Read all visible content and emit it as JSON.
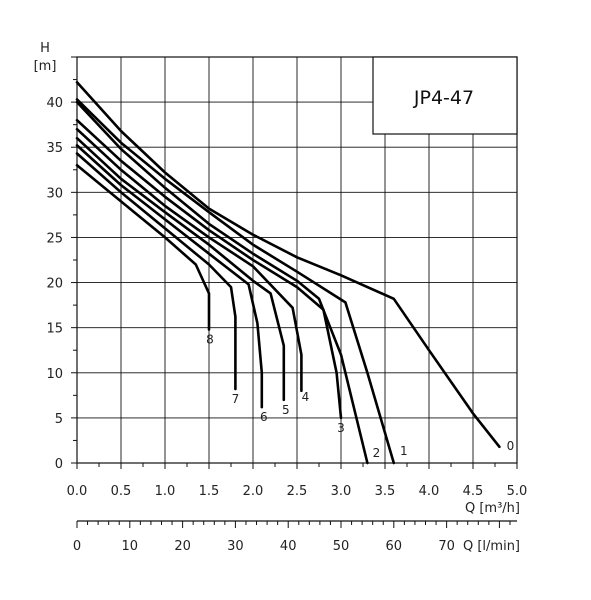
{
  "chart_data": {
    "type": "line",
    "title": "JP4-47",
    "y_axis": {
      "name": "H",
      "unit": "[m]",
      "range": [
        0,
        45
      ],
      "ticks": [
        0,
        5,
        10,
        15,
        20,
        25,
        30,
        35,
        40
      ]
    },
    "x_axis": {
      "label": "Q [m³/h]",
      "range": [
        0,
        5
      ],
      "ticks": [
        "0.0",
        "0.5",
        "1.0",
        "1.5",
        "2.0",
        "2.5",
        "3.0",
        "3.5",
        "4.0",
        "4.5",
        "5.0"
      ]
    },
    "x_axis_secondary": {
      "label": "Q [l/min]",
      "range": [
        0,
        83.33
      ],
      "ticks": [
        "0",
        "10",
        "20",
        "30",
        "40",
        "50",
        "60",
        "70"
      ]
    },
    "grid": true,
    "series": [
      {
        "name": "0",
        "points": [
          [
            0,
            42.2
          ],
          [
            0.5,
            36.8
          ],
          [
            1,
            32.2
          ],
          [
            1.5,
            28.2
          ],
          [
            2,
            25.3
          ],
          [
            2.5,
            22.8
          ],
          [
            3,
            20.8
          ],
          [
            3.6,
            18.2
          ],
          [
            4,
            12.5
          ],
          [
            4.5,
            5.5
          ],
          [
            4.8,
            1.8
          ]
        ]
      },
      {
        "name": "1",
        "points": [
          [
            0,
            40.3
          ],
          [
            0.5,
            35.5
          ],
          [
            1,
            31.5
          ],
          [
            1.5,
            27.8
          ],
          [
            2,
            24.2
          ],
          [
            2.5,
            21.2
          ],
          [
            3.05,
            17.8
          ],
          [
            3.3,
            10
          ],
          [
            3.6,
            0
          ]
        ]
      },
      {
        "name": "2",
        "points": [
          [
            0,
            40.0
          ],
          [
            0.5,
            34.8
          ],
          [
            1,
            30.5
          ],
          [
            1.5,
            26.5
          ],
          [
            2,
            23.2
          ],
          [
            2.5,
            20.2
          ],
          [
            2.75,
            18.2
          ],
          [
            3.0,
            12
          ],
          [
            3.3,
            0
          ]
        ]
      },
      {
        "name": "3",
        "points": [
          [
            0,
            38.0
          ],
          [
            0.5,
            33.5
          ],
          [
            1,
            29.5
          ],
          [
            1.5,
            25.8
          ],
          [
            2,
            22.5
          ],
          [
            2.5,
            19.5
          ],
          [
            2.8,
            17.0
          ],
          [
            2.95,
            10
          ],
          [
            3.0,
            5
          ]
        ]
      },
      {
        "name": "4",
        "points": [
          [
            0,
            37.0
          ],
          [
            0.5,
            32.5
          ],
          [
            1,
            28.5
          ],
          [
            1.5,
            25.0
          ],
          [
            2,
            21.8
          ],
          [
            2.45,
            17.2
          ],
          [
            2.55,
            12
          ],
          [
            2.55,
            8
          ]
        ]
      },
      {
        "name": "5",
        "points": [
          [
            0,
            36.0
          ],
          [
            0.5,
            31.5
          ],
          [
            1,
            27.8
          ],
          [
            1.5,
            24.2
          ],
          [
            2,
            20.2
          ],
          [
            2.2,
            18.8
          ],
          [
            2.35,
            13
          ],
          [
            2.35,
            7
          ]
        ]
      },
      {
        "name": "6",
        "points": [
          [
            0,
            35.2
          ],
          [
            0.5,
            30.8
          ],
          [
            1,
            27.0
          ],
          [
            1.5,
            23.2
          ],
          [
            1.95,
            19.8
          ],
          [
            2.05,
            15.5
          ],
          [
            2.1,
            10
          ],
          [
            2.1,
            6.2
          ]
        ]
      },
      {
        "name": "7",
        "points": [
          [
            0,
            34.3
          ],
          [
            0.5,
            30.0
          ],
          [
            1,
            26.0
          ],
          [
            1.5,
            22.0
          ],
          [
            1.75,
            19.5
          ],
          [
            1.8,
            16.2
          ],
          [
            1.8,
            8.2
          ]
        ]
      },
      {
        "name": "8",
        "points": [
          [
            0,
            33.0
          ],
          [
            0.5,
            29.0
          ],
          [
            1,
            25.0
          ],
          [
            1.35,
            22.0
          ],
          [
            1.5,
            18.8
          ],
          [
            1.5,
            14.8
          ]
        ]
      }
    ]
  }
}
